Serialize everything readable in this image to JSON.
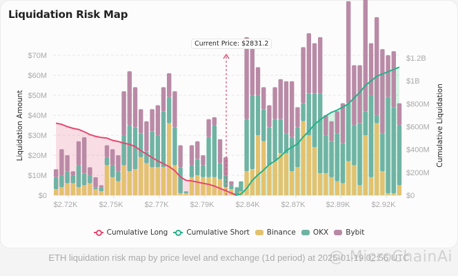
{
  "title": "Liquidation Risk Map",
  "footer": "ETH liquidation risk map by price level and exchange (1d period) at 2025-01-19 02:56 UTC",
  "watermark": "@ MicroChainAi",
  "current_price_label": "Current Price: $2831.2",
  "legend": [
    {
      "label": "Cumulative Long",
      "type": "line",
      "color": "#e5476f"
    },
    {
      "label": "Cumulative Short",
      "type": "line",
      "color": "#22b28a"
    },
    {
      "label": "Binance",
      "type": "bar",
      "color": "#e3c26f"
    },
    {
      "label": "OKX",
      "type": "bar",
      "color": "#6fb3a3"
    },
    {
      "label": "Bybit",
      "type": "bar",
      "color": "#b98aa6"
    }
  ],
  "chart_data": {
    "type": "bar",
    "stacked": true,
    "title": "Liquidation Risk Map",
    "ylabel": "Liquidation Amount",
    "y2label": "Cumulative Liquidation",
    "ylim": [
      0,
      70
    ],
    "y2lim": [
      0,
      1200
    ],
    "yticks": [
      "$0",
      "$10M",
      "$20M",
      "$30M",
      "$40M",
      "$50M",
      "$60M",
      "$70M"
    ],
    "y2ticks": [
      "$0",
      "$200M",
      "$400M",
      "$600M",
      "$800M",
      "$1B",
      "$1.2B"
    ],
    "xticks": [
      "$2.72K",
      "$2.75K",
      "$2.77K",
      "$2.79K",
      "$2.84K",
      "$2.87K",
      "$2.89K",
      "$2.92K"
    ],
    "current_price": 2831.2,
    "units": "USD millions (bars); USD millions (cumulative)",
    "long_side": {
      "binance": [
        3,
        4,
        6,
        6,
        4,
        5,
        6,
        3,
        2,
        15,
        9,
        7,
        15,
        12,
        13,
        19,
        16,
        14,
        14,
        14,
        36,
        15,
        1,
        1,
        9,
        10,
        9,
        9,
        9,
        8,
        4,
        3,
        0
      ],
      "okx": [
        6,
        6,
        6,
        4,
        11,
        6,
        4,
        1,
        2,
        4,
        6,
        5,
        15,
        23,
        21,
        12,
        6,
        18,
        16,
        28,
        13,
        19,
        13,
        1,
        6,
        8,
        6,
        20,
        26,
        8,
        6,
        2,
        4
      ],
      "bybit": [
        4,
        13,
        8,
        2,
        12,
        18,
        4,
        5,
        1,
        6,
        8,
        8,
        22,
        27,
        20,
        12,
        15,
        11,
        15,
        12,
        12,
        18,
        11,
        0,
        10,
        9,
        5,
        9,
        4,
        12,
        9,
        2,
        0
      ],
      "cumulative": [
        630,
        620,
        600,
        585,
        575,
        555,
        530,
        515,
        505,
        500,
        480,
        470,
        455,
        445,
        425,
        390,
        360,
        330,
        300,
        275,
        250,
        215,
        160,
        130,
        125,
        115,
        105,
        95,
        80,
        60,
        40,
        20,
        0
      ]
    },
    "short_side": {
      "binance": [
        0,
        2,
        12,
        13,
        30,
        27,
        15,
        17,
        21,
        21,
        12,
        14,
        37,
        30,
        24,
        11,
        11,
        9,
        7,
        6,
        17,
        15,
        5,
        30,
        9,
        36,
        12,
        1,
        1,
        5
      ],
      "okx": [
        1,
        5,
        26,
        37,
        20,
        16,
        19,
        21,
        17,
        10,
        17,
        20,
        9,
        21,
        27,
        40,
        19,
        18,
        24,
        20,
        29,
        20,
        31,
        12,
        41,
        4,
        19,
        48,
        43,
        30
      ],
      "bybit": [
        0,
        0,
        41,
        27,
        14,
        11,
        11,
        16,
        20,
        26,
        28,
        10,
        28,
        30,
        25,
        28,
        10,
        10,
        11,
        20,
        51,
        30,
        29,
        62,
        26,
        49,
        42,
        21,
        28,
        11
      ],
      "cumulative": [
        0,
        10,
        60,
        130,
        180,
        220,
        270,
        300,
        340,
        390,
        420,
        450,
        510,
        560,
        620,
        660,
        695,
        725,
        745,
        770,
        800,
        850,
        900,
        960,
        1000,
        1040,
        1060,
        1080,
        1100,
        1120
      ]
    }
  }
}
